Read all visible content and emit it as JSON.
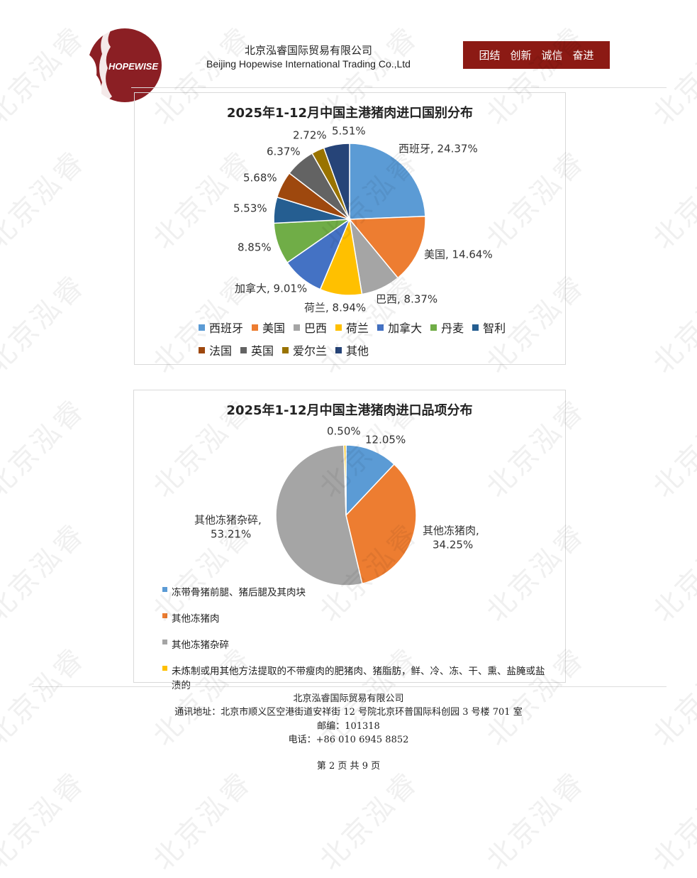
{
  "header": {
    "logo_text": "HOPEWISE",
    "company_cn": "北京泓睿国际贸易有限公司",
    "company_en": "Beijing Hopewise International Trading Co.,Ltd",
    "motto": [
      "团结",
      "创新",
      "诚信",
      "奋进"
    ],
    "brand_color": "#8c1a14"
  },
  "watermark": "北京泓睿",
  "chart_data": [
    {
      "type": "pie",
      "title": "2025年1-12月中国主港猪肉进口国别分布",
      "legend_position": "bottom",
      "categories": [
        "西班牙",
        "美国",
        "巴西",
        "荷兰",
        "加拿大",
        "丹麦",
        "智利",
        "法国",
        "英国",
        "爱尔兰",
        "其他"
      ],
      "values": [
        24.37,
        14.64,
        8.37,
        8.94,
        9.01,
        8.85,
        5.53,
        5.68,
        6.37,
        2.72,
        5.51
      ],
      "data_labels": [
        "西班牙, 24.37%",
        "美国, 14.64%",
        "巴西, 8.37%",
        "荷兰, 8.94%",
        "加拿大, 9.01%",
        "8.85%",
        "5.53%",
        "5.68%",
        "6.37%",
        "2.72%",
        "5.51%"
      ],
      "colors": [
        "#5b9bd5",
        "#ed7d31",
        "#a5a5a5",
        "#ffc000",
        "#4472c4",
        "#70ad47",
        "#255e91",
        "#9e480e",
        "#636363",
        "#997300",
        "#264478"
      ]
    },
    {
      "type": "pie",
      "title": "2025年1-12月中国主港猪肉进口品项分布",
      "legend_position": "bottom",
      "categories": [
        "冻带骨猪前腿、猪后腿及其肉块",
        "其他冻猪肉",
        "其他冻猪杂碎",
        "未炼制或用其他方法提取的不带瘦肉的肥猪肉、猪脂肪，鲜、冷、冻、干、熏、盐腌或盐渍的"
      ],
      "values": [
        12.05,
        34.25,
        53.21,
        0.5
      ],
      "data_labels": [
        [
          "12.05%"
        ],
        [
          "其他冻猪肉,",
          "34.25%"
        ],
        [
          "其他冻猪杂碎,",
          "53.21%"
        ],
        [
          "0.50%"
        ]
      ],
      "colors": [
        "#5b9bd5",
        "#ed7d31",
        "#a5a5a5",
        "#ffc000"
      ]
    }
  ],
  "footer": {
    "company": "北京泓睿国际贸易有限公司",
    "address": "通讯地址：北京市顺义区空港街道安祥街 12 号院北京环普国际科创园 3 号楼 701 室",
    "postcode": "邮编：101318",
    "phone": "电话：+86  010  6945  8852",
    "page": "第 2 页 共 9 页"
  }
}
